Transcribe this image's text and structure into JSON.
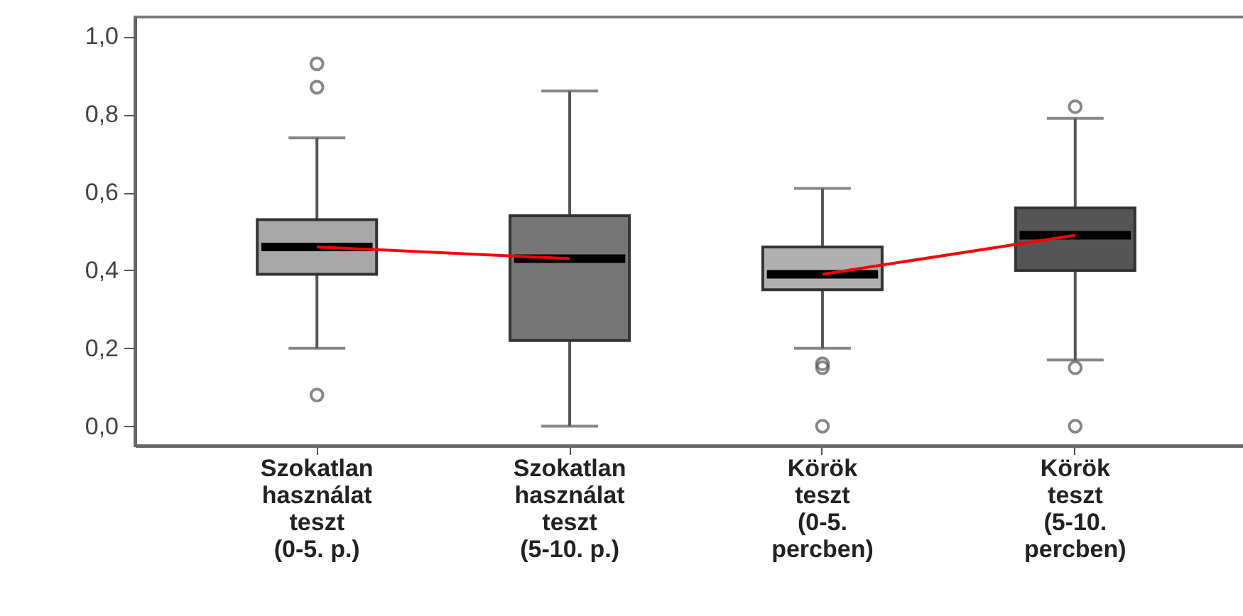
{
  "chart_data": {
    "type": "box",
    "categories": [
      "Szokatlan használat teszt (0-5. p.)",
      "Szokatlan használat teszt (5-10. p.)",
      "Körök teszt (0-5. percben)",
      "Körök teszt (5-10. percben)"
    ],
    "colors": [
      "#a8a8a8",
      "#767676",
      "#b0b0b0",
      "#555555"
    ],
    "boxes": [
      {
        "low": 0.2,
        "q1": 0.39,
        "median": 0.46,
        "q3": 0.53,
        "high": 0.74,
        "outliers": [
          0.93,
          0.87,
          0.08
        ]
      },
      {
        "low": 0.0,
        "q1": 0.22,
        "median": 0.43,
        "q3": 0.54,
        "high": 0.86
      },
      {
        "low": 0.2,
        "q1": 0.35,
        "median": 0.39,
        "q3": 0.46,
        "high": 0.61,
        "outliers": [
          0.16,
          0.15,
          0.0
        ]
      },
      {
        "low": 0.17,
        "q1": 0.4,
        "median": 0.49,
        "q3": 0.56,
        "high": 0.79,
        "outliers": [
          0.82,
          0.15,
          0.0
        ]
      }
    ],
    "series": [
      {
        "type": "line",
        "color": "#ff0000",
        "values": [
          0.46,
          0.43,
          null,
          null
        ]
      },
      {
        "type": "line",
        "color": "#ff0000",
        "values": [
          null,
          null,
          0.39,
          0.49
        ]
      }
    ],
    "ylim": [
      -0.05,
      1.05
    ],
    "yticks": [
      {
        "value": 0,
        "label": "0,0"
      },
      {
        "value": 0.2,
        "label": "0,2"
      },
      {
        "value": 0.4,
        "label": "0,4"
      },
      {
        "value": 0.6,
        "label": "0,6"
      },
      {
        "value": 0.8,
        "label": "0,8"
      },
      {
        "value": 1,
        "label": "1,0"
      }
    ]
  }
}
